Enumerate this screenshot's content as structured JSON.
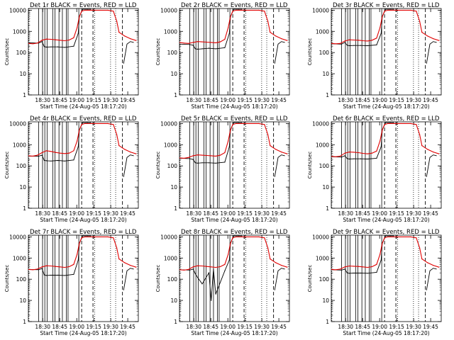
{
  "common": {
    "ylabel": "Counts/sec",
    "xlabel": "Start Time (24-Aug-05 18:17:20)",
    "x_tick_labels": [
      "18:30",
      "18:45",
      "19:00",
      "19:15",
      "19:30",
      "19:45"
    ],
    "y_tick_labels": [
      "1",
      "10",
      "100",
      "1000",
      "10000"
    ],
    "y_scale": "log",
    "ylim": [
      1,
      12000
    ],
    "xlim_minutes_after_start": [
      0,
      97
    ],
    "colors": {
      "events": "#000000",
      "lld": "#e00000",
      "axes": "#000000"
    }
  },
  "chart_data": [
    {
      "type": "line",
      "title": "Det 1r  BLACK = Events, RED = LLD",
      "series": [
        {
          "legend": "Events",
          "color": "#000000",
          "x": [
            0,
            9,
            12,
            14,
            16,
            20,
            26,
            32,
            40,
            44,
            45,
            48,
            52,
            55
          ],
          "y": [
            290,
            280,
            330,
            190,
            180,
            185,
            185,
            175,
            200,
            800,
            5000,
            11000,
            11000,
            11000
          ]
        },
        {
          "legend": "LLD",
          "color": "#e00000",
          "x": [
            0,
            4,
            8,
            12,
            16,
            20,
            24,
            28,
            32,
            36,
            40,
            43,
            45,
            47,
            50,
            70,
            75,
            78,
            80,
            85,
            90,
            95
          ],
          "y": [
            270,
            260,
            280,
            380,
            430,
            420,
            400,
            380,
            360,
            390,
            500,
            1500,
            5000,
            9000,
            10000,
            10000,
            9000,
            3000,
            900,
            600,
            450,
            370
          ]
        }
      ]
    },
    {
      "type": "line",
      "title": "Det 2r  BLACK = Events, RED = LLD",
      "series": [
        {
          "legend": "Events",
          "color": "#000000",
          "x": [
            0,
            9,
            12,
            14,
            16,
            20,
            26,
            32,
            40,
            44,
            45,
            48,
            52,
            55
          ],
          "y": [
            250,
            240,
            220,
            150,
            145,
            150,
            160,
            150,
            170,
            800,
            5000,
            11000,
            11000,
            11000
          ]
        },
        {
          "legend": "LLD",
          "color": "#e00000",
          "x": [
            0,
            4,
            8,
            12,
            16,
            20,
            24,
            28,
            32,
            36,
            40,
            43,
            45,
            47,
            50,
            70,
            75,
            78,
            80,
            85,
            90,
            95
          ],
          "y": [
            300,
            280,
            270,
            300,
            330,
            320,
            310,
            300,
            290,
            320,
            420,
            1500,
            5000,
            9000,
            10000,
            10000,
            9000,
            3000,
            900,
            600,
            450,
            370
          ]
        }
      ]
    },
    {
      "type": "line",
      "title": "Det 3r  BLACK = Events, RED = LLD",
      "series": [
        {
          "legend": "Events",
          "color": "#000000",
          "x": [
            0,
            9,
            12,
            14,
            16,
            20,
            26,
            32,
            40,
            44,
            45,
            48,
            52,
            55
          ],
          "y": [
            260,
            250,
            300,
            220,
            210,
            215,
            215,
            210,
            230,
            800,
            5000,
            11000,
            11000,
            11000
          ]
        },
        {
          "legend": "LLD",
          "color": "#e00000",
          "x": [
            0,
            4,
            8,
            12,
            16,
            20,
            24,
            28,
            32,
            36,
            40,
            43,
            45,
            47,
            50,
            70,
            75,
            78,
            80,
            85,
            90,
            95
          ],
          "y": [
            270,
            260,
            270,
            350,
            400,
            390,
            380,
            360,
            350,
            380,
            480,
            1500,
            5000,
            9000,
            10000,
            10000,
            9000,
            3000,
            900,
            600,
            450,
            370
          ]
        }
      ]
    },
    {
      "type": "line",
      "title": "Det 4r  BLACK = Events, RED = LLD",
      "series": [
        {
          "legend": "Events",
          "color": "#000000",
          "x": [
            0,
            9,
            12,
            14,
            16,
            20,
            26,
            32,
            40,
            44,
            45,
            48,
            52,
            55
          ],
          "y": [
            290,
            285,
            320,
            180,
            175,
            170,
            180,
            170,
            190,
            800,
            5000,
            11000,
            11000,
            11000
          ]
        },
        {
          "legend": "LLD",
          "color": "#e00000",
          "x": [
            0,
            4,
            8,
            12,
            16,
            20,
            24,
            28,
            32,
            36,
            40,
            43,
            45,
            47,
            50,
            70,
            75,
            78,
            80,
            85,
            90,
            95
          ],
          "y": [
            300,
            290,
            320,
            420,
            520,
            480,
            430,
            400,
            380,
            400,
            520,
            1500,
            5000,
            9000,
            10000,
            10000,
            9000,
            3000,
            900,
            600,
            450,
            370
          ]
        }
      ]
    },
    {
      "type": "line",
      "title": "Det 5r  BLACK = Events, RED = LLD",
      "series": [
        {
          "legend": "Events",
          "color": "#000000",
          "x": [
            0,
            9,
            12,
            14,
            16,
            20,
            26,
            32,
            40,
            44,
            45,
            48,
            52,
            55
          ],
          "y": [
            230,
            220,
            200,
            140,
            135,
            140,
            140,
            135,
            150,
            800,
            5000,
            11000,
            11000,
            11000
          ]
        },
        {
          "legend": "LLD",
          "color": "#e00000",
          "x": [
            0,
            4,
            8,
            12,
            16,
            20,
            24,
            28,
            32,
            36,
            40,
            43,
            45,
            47,
            50,
            70,
            75,
            78,
            80,
            85,
            90,
            95
          ],
          "y": [
            240,
            230,
            250,
            300,
            330,
            320,
            310,
            300,
            290,
            320,
            420,
            1500,
            5000,
            9000,
            10000,
            10000,
            9000,
            3000,
            900,
            600,
            450,
            370
          ]
        }
      ]
    },
    {
      "type": "line",
      "title": "Det 6r  BLACK = Events, RED = LLD",
      "series": [
        {
          "legend": "Events",
          "color": "#000000",
          "x": [
            0,
            9,
            12,
            14,
            16,
            20,
            26,
            32,
            40,
            44,
            45,
            48,
            52,
            55
          ],
          "y": [
            270,
            260,
            300,
            220,
            210,
            215,
            215,
            210,
            230,
            800,
            5000,
            11000,
            11000,
            11000
          ]
        },
        {
          "legend": "LLD",
          "color": "#e00000",
          "x": [
            0,
            4,
            8,
            12,
            16,
            20,
            24,
            28,
            32,
            36,
            40,
            43,
            45,
            47,
            50,
            70,
            75,
            78,
            80,
            85,
            90,
            95
          ],
          "y": [
            280,
            270,
            290,
            400,
            450,
            440,
            420,
            390,
            370,
            400,
            500,
            1500,
            5000,
            9000,
            10000,
            10000,
            9000,
            3000,
            900,
            600,
            450,
            370
          ]
        }
      ]
    },
    {
      "type": "line",
      "title": "Det 7r  BLACK = Events, RED = LLD",
      "series": [
        {
          "legend": "Events",
          "color": "#000000",
          "x": [
            0,
            9,
            12,
            14,
            16,
            20,
            26,
            32,
            40,
            44,
            45,
            48,
            52,
            55
          ],
          "y": [
            290,
            280,
            320,
            160,
            150,
            155,
            155,
            150,
            170,
            800,
            5000,
            11000,
            11000,
            11000
          ]
        },
        {
          "legend": "LLD",
          "color": "#e00000",
          "x": [
            0,
            4,
            8,
            12,
            16,
            20,
            24,
            28,
            32,
            36,
            40,
            43,
            45,
            47,
            50,
            70,
            75,
            78,
            80,
            85,
            90,
            95
          ],
          "y": [
            290,
            280,
            300,
            380,
            430,
            420,
            400,
            380,
            360,
            390,
            500,
            1500,
            5000,
            9000,
            10000,
            10000,
            9000,
            3000,
            900,
            600,
            450,
            370
          ]
        }
      ]
    },
    {
      "type": "line",
      "title": "Det 8r  BLACK = Events, RED = LLD",
      "series": [
        {
          "legend": "Events",
          "color": "#000000",
          "x": [
            0,
            9,
            12,
            14,
            16,
            20,
            26,
            28,
            30,
            32,
            40,
            44,
            45,
            48,
            52,
            55
          ],
          "y": [
            280,
            270,
            300,
            180,
            120,
            60,
            200,
            10,
            300,
            20,
            250,
            800,
            5000,
            11000,
            11000,
            11000
          ]
        },
        {
          "legend": "LLD",
          "color": "#e00000",
          "x": [
            0,
            4,
            8,
            12,
            16,
            20,
            24,
            28,
            32,
            36,
            40,
            43,
            45,
            47,
            50,
            70,
            75,
            78,
            80,
            85,
            90,
            95
          ],
          "y": [
            280,
            270,
            290,
            380,
            430,
            420,
            400,
            380,
            360,
            390,
            500,
            1500,
            5000,
            9000,
            10000,
            10000,
            9000,
            3000,
            900,
            600,
            450,
            370
          ]
        }
      ]
    },
    {
      "type": "line",
      "title": "Det 9r  BLACK = Events, RED = LLD",
      "series": [
        {
          "legend": "Events",
          "color": "#000000",
          "x": [
            0,
            9,
            12,
            14,
            16,
            20,
            26,
            32,
            40,
            44,
            45,
            48,
            52,
            55
          ],
          "y": [
            280,
            270,
            300,
            200,
            190,
            195,
            195,
            190,
            210,
            800,
            5000,
            11000,
            11000,
            11000
          ]
        },
        {
          "legend": "LLD",
          "color": "#e00000",
          "x": [
            0,
            4,
            8,
            12,
            16,
            20,
            24,
            28,
            32,
            36,
            40,
            43,
            45,
            47,
            50,
            70,
            75,
            78,
            80,
            85,
            90,
            95
          ],
          "y": [
            290,
            280,
            300,
            380,
            420,
            410,
            400,
            380,
            360,
            390,
            500,
            1500,
            5000,
            9000,
            10000,
            10000,
            9000,
            3000,
            900,
            600,
            450,
            370
          ]
        }
      ]
    }
  ]
}
